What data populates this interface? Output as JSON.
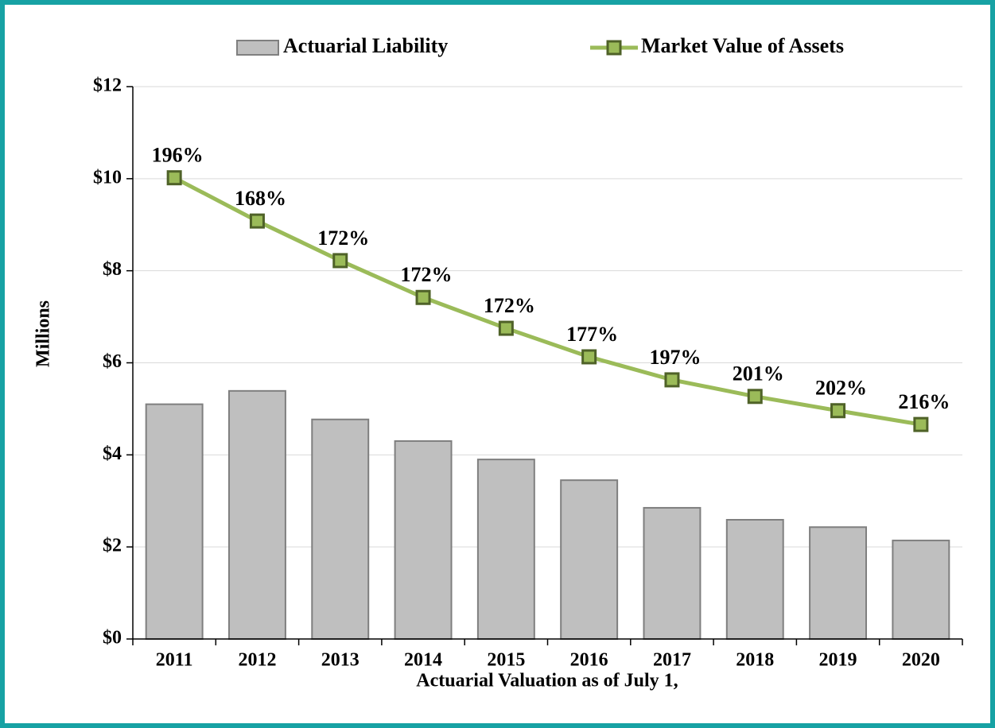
{
  "chart_data": {
    "type": "bar-line",
    "xlabel": "Actuarial Valuation as of July 1,",
    "ylabel": "Millions",
    "categories": [
      "2011",
      "2012",
      "2013",
      "2014",
      "2015",
      "2016",
      "2017",
      "2018",
      "2019",
      "2020"
    ],
    "series": [
      {
        "name": "Actuarial Liability",
        "type": "bar",
        "color": "#bfbfbf",
        "values": [
          5.1,
          5.39,
          4.77,
          4.3,
          3.9,
          3.45,
          2.85,
          2.59,
          2.43,
          2.14
        ]
      },
      {
        "name": "Market Value of Assets",
        "type": "line",
        "color": "#9bbb59",
        "marker_edge": "#4f6228",
        "values": [
          10.02,
          9.08,
          8.22,
          7.42,
          6.75,
          6.13,
          5.63,
          5.27,
          4.96,
          4.66
        ],
        "labels": [
          "196%",
          "168%",
          "172%",
          "172%",
          "172%",
          "177%",
          "197%",
          "201%",
          "202%",
          "216%"
        ]
      }
    ],
    "ylim": [
      0,
      12
    ],
    "yticks": [
      {
        "value": 0,
        "label": "$0"
      },
      {
        "value": 2,
        "label": "$2"
      },
      {
        "value": 4,
        "label": "$4"
      },
      {
        "value": 6,
        "label": "$6"
      },
      {
        "value": 8,
        "label": "$8"
      },
      {
        "value": 10,
        "label": "$10"
      },
      {
        "value": 12,
        "label": "$12"
      }
    ],
    "grid": true,
    "legend": "top"
  }
}
